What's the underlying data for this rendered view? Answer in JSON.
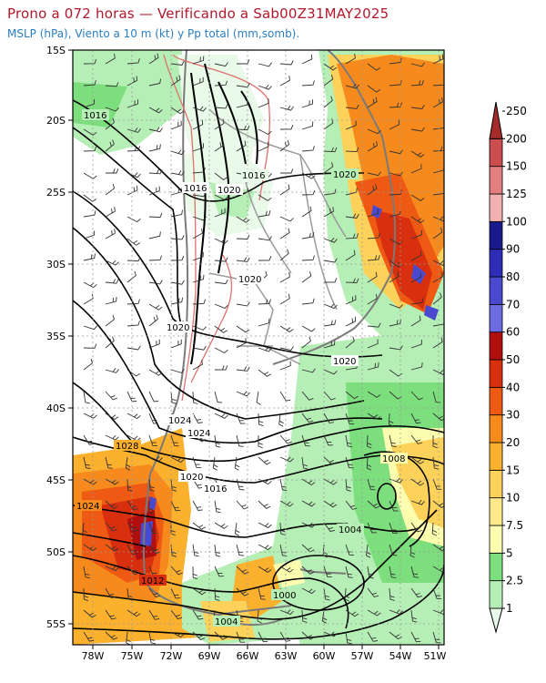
{
  "header": {
    "title": "Prono a 072 horas — Verificando a Sab00Z31MAY2025",
    "subtitle": "MSLP (hPa), Viento a 10 m (kt) y Pp total (mm,somb)."
  },
  "map": {
    "lat_labels": [
      "15S",
      "20S",
      "25S",
      "30S",
      "35S",
      "40S",
      "45S",
      "50S",
      "55S"
    ],
    "lon_labels": [
      "78W",
      "75W",
      "72W",
      "69W",
      "66W",
      "63W",
      "60W",
      "57W",
      "54W",
      "51W"
    ],
    "isobar_labels": [
      "1016",
      "1016",
      "1016",
      "1020",
      "1020",
      "1020",
      "1020",
      "1020",
      "1024",
      "1024",
      "1028",
      "1028",
      "1020",
      "1016",
      "1008",
      "1004",
      "1000",
      "1012",
      "1004",
      "1024"
    ]
  },
  "colorbar": {
    "labels": [
      "1",
      "2.5",
      "5",
      "7.5",
      "10",
      "15",
      "20",
      "30",
      "40",
      "50",
      "60",
      "70",
      "80",
      "90",
      "100",
      "125",
      "150",
      "200",
      "250"
    ],
    "colors": [
      "#e9fae9",
      "#b5efb5",
      "#7dde7d",
      "#fdfdb0",
      "#fde88a",
      "#fdd25a",
      "#fbb02e",
      "#f68a1c",
      "#ee5a14",
      "#d8300f",
      "#b10f0f",
      "#6c6ce0",
      "#4a4ad0",
      "#2d2db8",
      "#1a1a8e",
      "#f3b0b0",
      "#e47f7f",
      "#cc4d4d",
      "#a52a2a"
    ]
  }
}
